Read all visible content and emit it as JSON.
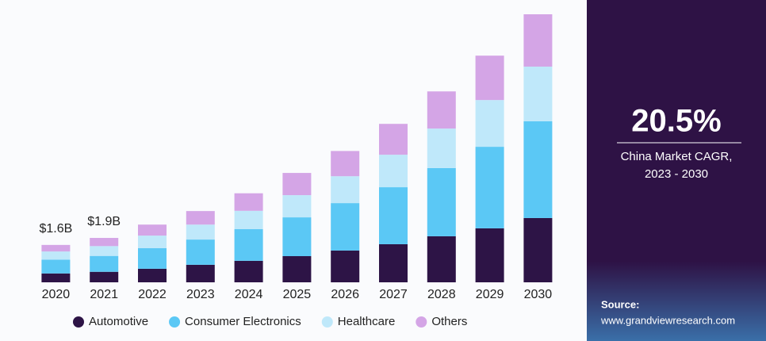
{
  "chart_data": {
    "type": "bar",
    "stacked": true,
    "categories": [
      "2020",
      "2021",
      "2022",
      "2023",
      "2024",
      "2025",
      "2026",
      "2027",
      "2028",
      "2029",
      "2030"
    ],
    "series": [
      {
        "name": "Automotive",
        "color": "#2d1446",
        "values": [
          0.38,
          0.45,
          0.58,
          0.75,
          0.92,
          1.12,
          1.36,
          1.63,
          1.97,
          2.31,
          2.75
        ]
      },
      {
        "name": "Consumer Electronics",
        "color": "#5bc8f5",
        "values": [
          0.59,
          0.68,
          0.88,
          1.08,
          1.36,
          1.66,
          2.03,
          2.44,
          2.92,
          3.49,
          4.14
        ]
      },
      {
        "name": "Healthcare",
        "color": "#bfe8fa",
        "values": [
          0.35,
          0.42,
          0.54,
          0.64,
          0.78,
          0.95,
          1.15,
          1.39,
          1.69,
          2.0,
          2.34
        ]
      },
      {
        "name": "Others",
        "color": "#d4a5e6",
        "values": [
          0.28,
          0.35,
          0.47,
          0.58,
          0.75,
          0.95,
          1.08,
          1.32,
          1.59,
          1.9,
          2.24
        ]
      }
    ],
    "annotations": [
      {
        "x": "2020",
        "value": 1.6,
        "label": "$1.6B"
      },
      {
        "x": "2021",
        "value": 1.9,
        "label": "$1.9B"
      }
    ],
    "legend": "bottom"
  },
  "sidebar": {
    "stat": "20.5%",
    "stat_caption": "China Market CAGR,\n2023 - 2030",
    "source_label": "Source:",
    "source_url": "www.grandviewresearch.com"
  }
}
